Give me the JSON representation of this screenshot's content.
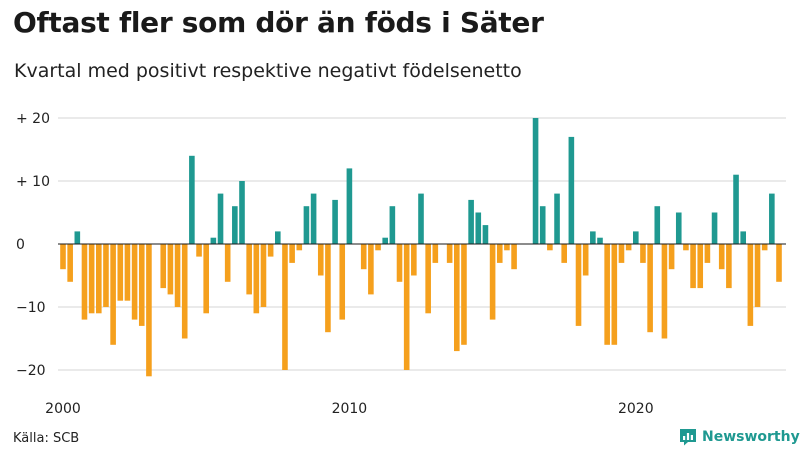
{
  "header": {
    "title": "Oftast fler som dör än föds i Säter",
    "subtitle": "Kvartal med positivt respektive negativt födelsenetto"
  },
  "footer": {
    "source": "Källa: SCB",
    "brand": "Newsworthy",
    "brand_icon": "bar-chart-speech-bubble-icon"
  },
  "colors": {
    "positive": "#1f9991",
    "negative": "#f5a01d",
    "brand": "#1f9991"
  },
  "chart_data": {
    "type": "bar",
    "title": "Oftast fler som dör än föds i Säter",
    "subtitle": "Kvartal med positivt respektive negativt födelsenetto",
    "x_unit": "quarter",
    "x_start": "2000 Q1",
    "x_tick_labels": [
      "2000",
      "2010",
      "2020"
    ],
    "y_tick_values": [
      20,
      10,
      0,
      -10,
      -20
    ],
    "y_tick_labels": [
      "+ 20",
      "+ 10",
      "0",
      "−10",
      "−20"
    ],
    "ylim": [
      -22,
      20
    ],
    "grid": "horizontal",
    "legend": "none",
    "values": [
      -4,
      -6,
      2,
      -12,
      -11,
      -11,
      -10,
      -16,
      -9,
      -9,
      -12,
      -13,
      -21,
      0,
      -7,
      -8,
      -10,
      -15,
      14,
      -2,
      -11,
      1,
      8,
      -6,
      6,
      10,
      -8,
      -11,
      -10,
      -2,
      2,
      -20,
      -3,
      -1,
      6,
      8,
      -5,
      -14,
      7,
      -12,
      12,
      0,
      -4,
      -8,
      -1,
      1,
      6,
      -6,
      -20,
      -5,
      8,
      -11,
      -3,
      0,
      -3,
      -17,
      -16,
      7,
      5,
      3,
      -12,
      -3,
      -1,
      -4,
      0,
      0,
      20,
      6,
      -1,
      8,
      -3,
      17,
      -13,
      -5,
      2,
      1,
      -16,
      -16,
      -3,
      -1,
      2,
      -3,
      -14,
      6,
      -15,
      -4,
      5,
      -1,
      -7,
      -7,
      -3,
      5,
      -4,
      -7,
      11,
      2,
      -13,
      -10,
      -1,
      8,
      -6
    ]
  }
}
